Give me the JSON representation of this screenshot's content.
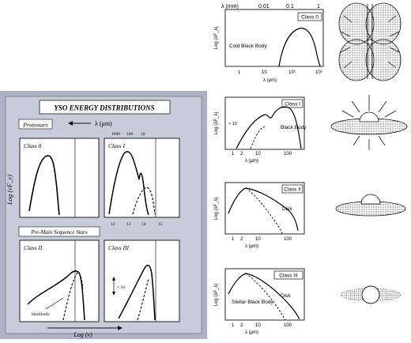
{
  "left_panel": {
    "title": "YSO ENERGY DISTRIBUTIONS",
    "protostars_label": "Protostars",
    "wavelength_axis": "λ (μm)",
    "top_ticks": [
      "1000",
      "100",
      "10"
    ],
    "y_axis": "Log (νF_ν)",
    "pms_label": "Pre-Main Sequence Stars",
    "x_axis": "Log (ν)",
    "class0": "Class 0",
    "class1": "Class I",
    "class2": "Class II",
    "class3": "Class III",
    "bottom_ticks": [
      "12",
      "13",
      "14",
      "15"
    ],
    "x10_note": "× 10",
    "blackbody_note": "blackbody"
  },
  "right_panel": {
    "top_axis_label": "λ (mm)",
    "top_ticks": [
      "0.01",
      "0.1",
      "1"
    ],
    "y_label": "Log (λF_λ)",
    "x_label": "λ (μm)",
    "panels": [
      {
        "class": "Class 0",
        "curve_label": "Cold Black Body",
        "ticks": [
          "1",
          "10",
          "10²",
          "10³"
        ]
      },
      {
        "class": "Class I",
        "curve_label": "Black Body",
        "note": "× 10",
        "ticks": [
          "1",
          "2",
          "10",
          "100"
        ]
      },
      {
        "class": "Class II",
        "curve_label": "Disk",
        "ticks": [
          "1",
          "2",
          "10",
          "100"
        ]
      },
      {
        "class": "Class III",
        "curve_label": "Stellar Black Body",
        "note": "Disk",
        "ticks": [
          "1",
          "2",
          "10",
          "100"
        ]
      }
    ]
  }
}
